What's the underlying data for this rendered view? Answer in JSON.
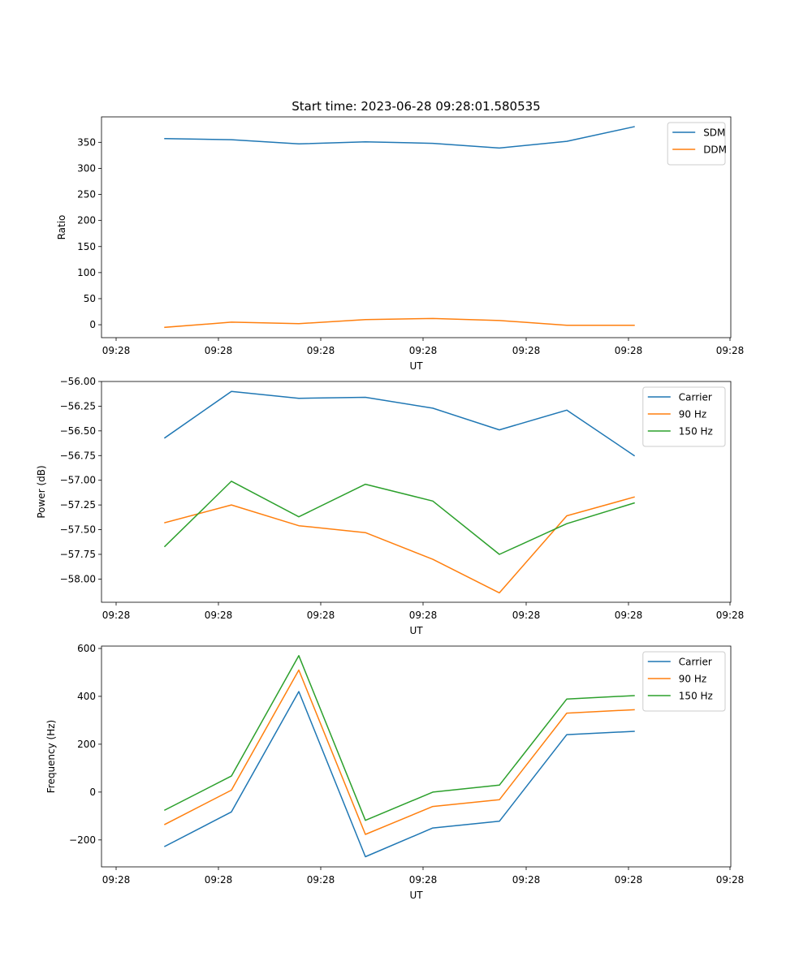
{
  "figure": {
    "title": "Start time: 2023-06-28 09:28:01.580535"
  },
  "chart_data": [
    {
      "type": "line",
      "title": "Start time: 2023-06-28 09:28:01.580535",
      "xlabel": "UT",
      "ylabel": "Ratio",
      "x_tick_labels": [
        "09:28",
        "09:28",
        "09:28",
        "09:28",
        "09:28",
        "09:28",
        "09:28"
      ],
      "y_ticks": [
        0,
        50,
        100,
        150,
        200,
        250,
        300,
        350
      ],
      "y_tick_labels": [
        "0",
        "50",
        "100",
        "150",
        "200",
        "250",
        "300",
        "350"
      ],
      "ylim": [
        -24.8,
        398.8
      ],
      "grid": false,
      "legend_position": "upper right",
      "series": [
        {
          "name": "SDM",
          "color": "#1f77b4",
          "values": [
            357,
            355,
            347,
            351,
            348,
            339,
            352,
            380
          ]
        },
        {
          "name": "DDM",
          "color": "#ff7f0e",
          "values": [
            -5,
            5,
            2,
            10,
            12,
            8,
            -1,
            -1
          ]
        }
      ]
    },
    {
      "type": "line",
      "xlabel": "UT",
      "ylabel": "Power (dB)",
      "x_tick_labels": [
        "09:28",
        "09:28",
        "09:28",
        "09:28",
        "09:28",
        "09:28",
        "09:28"
      ],
      "y_ticks": [
        -58.0,
        -57.75,
        -57.5,
        -57.25,
        -57.0,
        -56.75,
        -56.5,
        -56.25,
        -56.0
      ],
      "y_tick_labels": [
        "−58.00",
        "−57.75",
        "−57.50",
        "−57.25",
        "−57.00",
        "−56.75",
        "−56.50",
        "−56.25",
        "−56.00"
      ],
      "ylim": [
        -58.235,
        -56.0
      ],
      "grid": false,
      "legend_position": "upper right",
      "series": [
        {
          "name": "Carrier",
          "color": "#1f77b4",
          "values": [
            -56.57,
            -56.1,
            -56.17,
            -56.16,
            -56.27,
            -56.49,
            -56.29,
            -56.75
          ]
        },
        {
          "name": "90 Hz",
          "color": "#ff7f0e",
          "values": [
            -57.43,
            -57.25,
            -57.46,
            -57.53,
            -57.8,
            -58.14,
            -57.36,
            -57.17
          ]
        },
        {
          "name": "150 Hz",
          "color": "#2ca02c",
          "values": [
            -57.67,
            -57.01,
            -57.37,
            -57.04,
            -57.21,
            -57.75,
            -57.44,
            -57.23
          ]
        }
      ]
    },
    {
      "type": "line",
      "xlabel": "UT",
      "ylabel": "Frequency (Hz)",
      "x_tick_labels": [
        "09:28",
        "09:28",
        "09:28",
        "09:28",
        "09:28",
        "09:28",
        "09:28"
      ],
      "y_ticks": [
        -200,
        0,
        200,
        400,
        600
      ],
      "y_tick_labels": [
        "−200",
        "0",
        "200",
        "400",
        "600"
      ],
      "ylim": [
        -312.5,
        610.0
      ],
      "grid": false,
      "legend_position": "upper right",
      "series": [
        {
          "name": "Carrier",
          "color": "#1f77b4",
          "values": [
            -227,
            -83,
            420,
            -270,
            -150,
            -122,
            240,
            254
          ]
        },
        {
          "name": "90 Hz",
          "color": "#ff7f0e",
          "values": [
            -135,
            8,
            510,
            -177,
            -60,
            -32,
            330,
            344
          ]
        },
        {
          "name": "150 Hz",
          "color": "#2ca02c",
          "values": [
            -75,
            67,
            570,
            -118,
            0,
            29,
            389,
            403
          ]
        }
      ]
    }
  ]
}
